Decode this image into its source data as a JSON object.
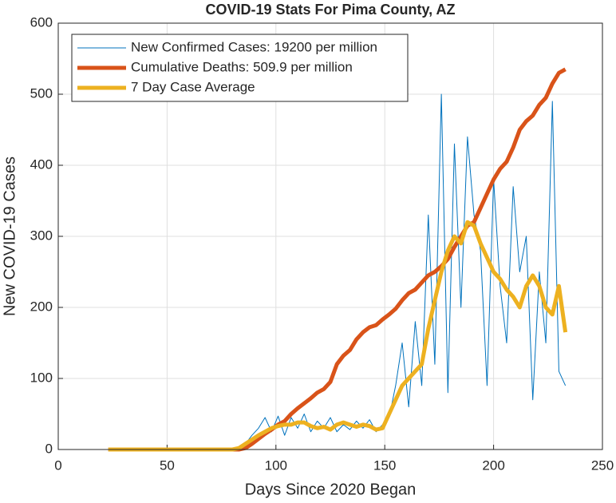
{
  "chart_data": {
    "type": "line",
    "title": "COVID-19 Stats For Pima County, AZ",
    "x_label": "Days Since 2020 Began",
    "y_label": "New COVID-19 Cases",
    "xlim": [
      0,
      250
    ],
    "xticks": [
      0,
      50,
      100,
      150,
      200,
      250
    ],
    "ylim": [
      0,
      600
    ],
    "yticks": [
      0,
      100,
      200,
      300,
      400,
      500,
      600
    ],
    "grid": true,
    "legend_position": "upper-left",
    "x": [
      23,
      26,
      29,
      32,
      35,
      38,
      41,
      44,
      47,
      50,
      53,
      56,
      59,
      62,
      65,
      68,
      71,
      74,
      77,
      80,
      83,
      86,
      89,
      92,
      95,
      98,
      101,
      104,
      107,
      110,
      113,
      116,
      119,
      122,
      125,
      128,
      131,
      134,
      137,
      140,
      143,
      146,
      149,
      152,
      155,
      158,
      161,
      164,
      167,
      170,
      173,
      176,
      179,
      182,
      185,
      188,
      191,
      194,
      197,
      200,
      203,
      206,
      209,
      212,
      215,
      218,
      221,
      224,
      227,
      230,
      233
    ],
    "series": [
      {
        "name": "New Confirmed Cases: 19200 per million",
        "color": "#0072bd",
        "width": 1,
        "values": [
          0,
          0,
          0,
          0,
          0,
          0,
          0,
          0,
          0,
          0,
          0,
          0,
          0,
          0,
          0,
          0,
          0,
          0,
          0,
          0,
          2,
          8,
          20,
          30,
          45,
          25,
          47,
          20,
          45,
          30,
          50,
          25,
          40,
          30,
          45,
          25,
          35,
          28,
          40,
          30,
          42,
          25,
          35,
          45,
          90,
          150,
          60,
          180,
          90,
          330,
          120,
          500,
          80,
          430,
          200,
          440,
          330,
          280,
          90,
          380,
          230,
          150,
          370,
          250,
          300,
          70,
          250,
          150,
          490,
          110,
          90
        ]
      },
      {
        "name": "Cumulative Deaths: 509.9 per million",
        "color": "#d95319",
        "width": 5,
        "values": [
          0,
          0,
          0,
          0,
          0,
          0,
          0,
          0,
          0,
          0,
          0,
          0,
          0,
          0,
          0,
          0,
          0,
          0,
          0,
          0,
          0,
          2,
          8,
          15,
          22,
          28,
          35,
          40,
          50,
          58,
          65,
          72,
          80,
          85,
          95,
          120,
          132,
          140,
          155,
          165,
          172,
          175,
          183,
          190,
          198,
          210,
          220,
          225,
          235,
          245,
          250,
          258,
          268,
          285,
          300,
          315,
          320,
          340,
          360,
          380,
          395,
          405,
          425,
          450,
          462,
          470,
          485,
          495,
          515,
          530,
          535
        ]
      },
      {
        "name": "7 Day Case Average",
        "color": "#edb120",
        "width": 5,
        "values": [
          0,
          0,
          0,
          0,
          0,
          0,
          0,
          0,
          0,
          0,
          0,
          0,
          0,
          0,
          0,
          0,
          0,
          0,
          0,
          0,
          2,
          8,
          14,
          20,
          25,
          30,
          33,
          35,
          35,
          38,
          38,
          33,
          30,
          32,
          28,
          35,
          38,
          35,
          32,
          35,
          33,
          28,
          30,
          50,
          70,
          90,
          100,
          110,
          120,
          170,
          210,
          250,
          280,
          300,
          290,
          320,
          315,
          290,
          270,
          250,
          240,
          225,
          215,
          200,
          230,
          245,
          230,
          200,
          190,
          230,
          165
        ]
      }
    ]
  }
}
